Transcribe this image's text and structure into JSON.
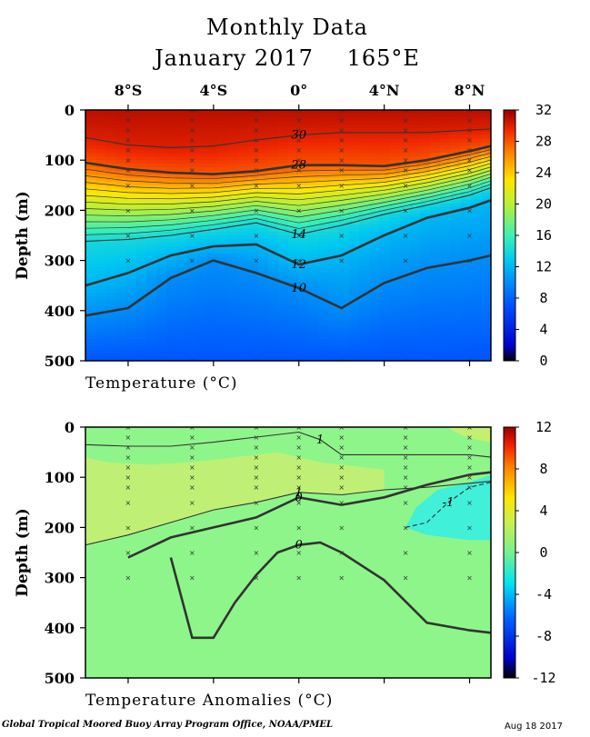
{
  "header": {
    "title": "Monthly Data",
    "month": "January 2017",
    "longitude": "165°E"
  },
  "footer": {
    "credit": "Global Tropical Moored Buoy Array Program Office, NOAA/PMEL",
    "date": "Aug 18 2017"
  },
  "chart_data": [
    {
      "type": "heatmap",
      "title": "Temperature",
      "xlabel": "Temperature (°C)",
      "ylabel": "Depth (m)",
      "x_ticks": [
        "8°S",
        "4°S",
        "0°",
        "4°N",
        "8°N"
      ],
      "x_tick_values": [
        -8,
        -4,
        0,
        4,
        8
      ],
      "xlim": [
        -10,
        9
      ],
      "y_ticks": [
        "0",
        "100",
        "200",
        "300",
        "400",
        "500"
      ],
      "y_tick_values": [
        0,
        100,
        200,
        300,
        400,
        500
      ],
      "ylim": [
        0,
        500
      ],
      "colorbar": {
        "min": 0,
        "max": 32,
        "tick_labels": [
          "32",
          "28",
          "24",
          "20",
          "16",
          "12",
          "8",
          "4",
          "0"
        ],
        "tick_values": [
          32,
          28,
          24,
          20,
          16,
          12,
          8,
          4,
          0
        ]
      },
      "contours": [
        {
          "level": 30,
          "label": "30",
          "x": [
            -10,
            -8,
            -6,
            -4,
            -2,
            0,
            2,
            4,
            6,
            8,
            9
          ],
          "depth": [
            55,
            70,
            75,
            72,
            60,
            50,
            45,
            45,
            45,
            40,
            38
          ]
        },
        {
          "level": 28,
          "label": "28",
          "x": [
            -10,
            -8,
            -6,
            -4,
            -2,
            0,
            2,
            4,
            6,
            8,
            9
          ],
          "depth": [
            105,
            118,
            125,
            128,
            122,
            110,
            110,
            112,
            100,
            82,
            72
          ]
        },
        {
          "level": 14,
          "label": "14",
          "x": [
            -10,
            -8,
            -6,
            -4,
            -2,
            0,
            2,
            4,
            6,
            8,
            9
          ],
          "depth": [
            262,
            258,
            250,
            238,
            225,
            248,
            230,
            208,
            190,
            170,
            155
          ]
        },
        {
          "level": 12,
          "label": "12",
          "x": [
            -10,
            -8,
            -6,
            -4,
            -2,
            0,
            2,
            4,
            6,
            8,
            9
          ],
          "depth": [
            350,
            325,
            290,
            272,
            268,
            308,
            290,
            250,
            215,
            195,
            180
          ]
        },
        {
          "level": 10,
          "label": "10",
          "x": [
            -10,
            -8,
            -6,
            -4,
            -2,
            0,
            2,
            4,
            6,
            8,
            9
          ],
          "depth": [
            410,
            395,
            335,
            300,
            325,
            355,
            395,
            345,
            315,
            300,
            290
          ]
        }
      ],
      "sample_profiles_x": [
        -8,
        -5,
        -2,
        0,
        2,
        5,
        8
      ],
      "sample_depths": [
        0,
        20,
        40,
        60,
        80,
        100,
        120,
        150,
        200,
        250,
        300,
        500
      ]
    },
    {
      "type": "heatmap",
      "title": "Temperature Anomalies",
      "xlabel": "Temperature Anomalies (°C)",
      "ylabel": "Depth (m)",
      "x_ticks": [
        "8°S",
        "4°S",
        "0°",
        "4°N",
        "8°N"
      ],
      "x_tick_values": [
        -8,
        -4,
        0,
        4,
        8
      ],
      "xlim": [
        -10,
        9
      ],
      "y_ticks": [
        "0",
        "100",
        "200",
        "300",
        "400",
        "500"
      ],
      "y_tick_values": [
        0,
        100,
        200,
        300,
        400,
        500
      ],
      "ylim": [
        0,
        500
      ],
      "colorbar": {
        "min": -12,
        "max": 12,
        "tick_labels": [
          "12",
          "8",
          "4",
          "0",
          "-4",
          "-8",
          "-12"
        ],
        "tick_values": [
          12,
          8,
          4,
          0,
          -4,
          -8,
          -12
        ]
      },
      "contours": [
        {
          "level": 1,
          "label": "1",
          "x": [
            -10,
            -8,
            -6,
            -4,
            -2,
            0,
            1,
            2,
            4,
            6,
            8,
            9
          ],
          "depth": [
            35,
            38,
            38,
            30,
            20,
            10,
            25,
            55,
            55,
            55,
            55,
            60
          ]
        },
        {
          "level": 1,
          "label": "1",
          "x": [
            -10,
            -8,
            -6,
            -4,
            -2,
            0,
            2,
            4,
            6,
            8,
            9
          ],
          "depth": [
            235,
            215,
            190,
            165,
            150,
            130,
            135,
            125,
            120,
            112,
            108
          ]
        },
        {
          "level": 0,
          "label": "0",
          "x": [
            -10,
            -8,
            -6,
            -4,
            -2,
            0,
            2,
            4,
            6,
            8,
            9
          ],
          "depth": [
            null,
            260,
            220,
            200,
            180,
            140,
            155,
            140,
            115,
            95,
            90
          ]
        },
        {
          "level": 0,
          "label": "0",
          "x": [
            -6,
            -5,
            -4,
            -3,
            -2,
            -1,
            0,
            1,
            2,
            4,
            6,
            8,
            9
          ],
          "depth": [
            260,
            420,
            420,
            350,
            295,
            250,
            235,
            230,
            250,
            305,
            390,
            405,
            410
          ]
        },
        {
          "level": -1,
          "label": "-1",
          "x": [
            5,
            6,
            7,
            8,
            9
          ],
          "depth": [
            200,
            190,
            150,
            120,
            110
          ]
        }
      ],
      "sample_profiles_x": [
        -8,
        -5,
        -2,
        0,
        2,
        5,
        8
      ],
      "sample_depths": [
        0,
        20,
        40,
        60,
        80,
        100,
        120,
        150,
        200,
        250,
        300
      ]
    }
  ],
  "colors": {
    "background": "#ffffff",
    "anomaly_base": "#8ef58a",
    "anomaly_positive": "#c4f072",
    "anomaly_negative": "#40f0d8",
    "contour": "#333333"
  }
}
